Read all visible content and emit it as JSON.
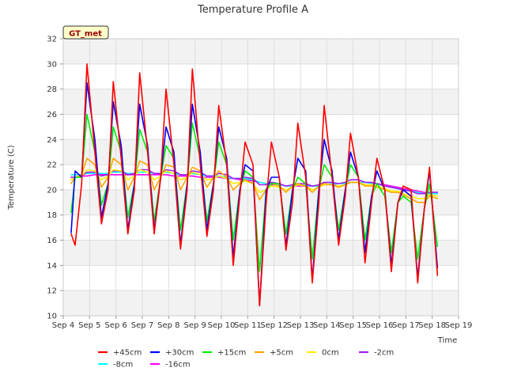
{
  "chart_data": {
    "type": "line",
    "title": "Temperature Profile A",
    "xlabel": "Time",
    "ylabel": "Temperature (C)",
    "badge": "GT_met",
    "xlim": [
      4,
      19
    ],
    "ylim": [
      10,
      32
    ],
    "x_ticks": [
      4,
      5,
      6,
      7,
      8,
      9,
      10,
      11,
      12,
      13,
      14,
      15,
      16,
      17,
      18,
      19
    ],
    "x_tick_labels": [
      "Sep 4",
      "Sep 5",
      "Sep 6",
      "Sep 7",
      "Sep 8",
      "Sep 9",
      "Sep 10",
      "Sep 11",
      "Sep 12",
      "Sep 13",
      "Sep 14",
      "Sep 15",
      "Sep 16",
      "Sep 17",
      "Sep 18",
      "Sep 19"
    ],
    "y_ticks": [
      10,
      12,
      14,
      16,
      18,
      20,
      22,
      24,
      26,
      28,
      30,
      32
    ],
    "grid": "horizontal bands",
    "legend_placement": "bottom",
    "x": [
      4.3,
      4.45,
      4.7,
      4.9,
      5.2,
      5.45,
      5.7,
      5.9,
      6.2,
      6.45,
      6.7,
      6.9,
      7.2,
      7.45,
      7.7,
      7.9,
      8.2,
      8.45,
      8.7,
      8.9,
      9.2,
      9.45,
      9.7,
      9.9,
      10.2,
      10.45,
      10.7,
      10.9,
      11.2,
      11.45,
      11.7,
      11.9,
      12.2,
      12.45,
      12.7,
      12.9,
      13.2,
      13.45,
      13.7,
      13.9,
      14.2,
      14.45,
      14.7,
      14.9,
      15.2,
      15.45,
      15.7,
      15.9,
      16.2,
      16.45,
      16.7,
      16.9,
      17.2,
      17.45,
      17.7,
      17.9,
      18.2
    ],
    "series": [
      {
        "name": "+45cm",
        "color": "#ff0000",
        "values": [
          16.5,
          15.6,
          20.5,
          30.0,
          23.0,
          17.3,
          20.0,
          28.6,
          22.5,
          16.5,
          20.0,
          29.3,
          23.0,
          16.5,
          21.0,
          28.0,
          22.0,
          15.3,
          20.0,
          29.6,
          22.0,
          16.3,
          20.0,
          26.7,
          22.0,
          14.0,
          19.5,
          23.8,
          22.0,
          10.8,
          19.0,
          23.8,
          21.0,
          15.2,
          19.0,
          25.3,
          21.0,
          12.6,
          19.0,
          26.7,
          21.0,
          15.6,
          19.5,
          24.5,
          21.0,
          14.2,
          19.0,
          22.5,
          20.0,
          13.5,
          19.0,
          20.3,
          20.0,
          12.6,
          18.5,
          21.8,
          13.2
        ]
      },
      {
        "name": "+30cm",
        "color": "#0000ff",
        "values": [
          16.6,
          21.5,
          21.0,
          28.5,
          24.0,
          17.8,
          20.5,
          27.0,
          23.5,
          16.8,
          20.5,
          26.8,
          23.5,
          16.8,
          21.0,
          25.0,
          23.0,
          15.6,
          20.5,
          26.8,
          23.0,
          16.8,
          20.5,
          25.0,
          22.5,
          14.6,
          20.0,
          22.0,
          21.5,
          10.8,
          20.0,
          21.0,
          21.0,
          15.5,
          20.0,
          22.5,
          21.5,
          12.8,
          20.0,
          24.0,
          21.5,
          16.0,
          20.0,
          23.0,
          21.0,
          15.0,
          19.5,
          21.5,
          20.0,
          14.0,
          19.0,
          20.0,
          19.5,
          13.0,
          18.5,
          21.5,
          13.8
        ]
      },
      {
        "name": "+15cm",
        "color": "#00ee00",
        "values": [
          18.2,
          21.0,
          21.0,
          26.0,
          23.0,
          18.8,
          20.5,
          25.0,
          23.0,
          17.8,
          20.5,
          24.8,
          23.0,
          17.5,
          21.0,
          23.5,
          22.5,
          16.8,
          20.5,
          25.3,
          22.5,
          17.5,
          20.5,
          23.8,
          22.0,
          16.0,
          20.0,
          21.5,
          21.0,
          13.5,
          20.0,
          20.5,
          20.5,
          16.5,
          20.0,
          21.0,
          20.5,
          14.5,
          20.0,
          22.0,
          21.0,
          16.8,
          20.0,
          22.0,
          21.0,
          16.0,
          19.5,
          20.5,
          19.5,
          15.0,
          19.0,
          19.5,
          19.0,
          14.5,
          18.5,
          20.5,
          15.5
        ]
      },
      {
        "name": "+5cm",
        "color": "#ffa500",
        "values": [
          20.5,
          21.0,
          21.2,
          22.5,
          22.0,
          20.2,
          21.0,
          22.5,
          22.0,
          20.0,
          21.0,
          22.3,
          22.0,
          20.0,
          21.0,
          22.0,
          21.8,
          20.0,
          21.0,
          21.8,
          21.5,
          20.2,
          21.0,
          21.5,
          21.0,
          20.0,
          20.5,
          20.8,
          20.5,
          19.2,
          20.0,
          20.5,
          20.3,
          19.8,
          20.3,
          20.5,
          20.3,
          19.8,
          20.3,
          20.5,
          20.4,
          20.2,
          20.4,
          20.6,
          20.6,
          20.3,
          20.3,
          20.2,
          20.0,
          19.8,
          19.8,
          19.6,
          19.3,
          19.0,
          19.0,
          19.5,
          19.3
        ]
      },
      {
        "name": "0cm",
        "color": "#ffee00",
        "values": [
          20.8,
          21.0,
          21.1,
          21.6,
          21.5,
          20.8,
          21.1,
          21.6,
          21.5,
          20.8,
          21.1,
          21.6,
          21.4,
          20.8,
          21.1,
          21.5,
          21.3,
          20.8,
          21.0,
          21.4,
          21.2,
          20.8,
          20.9,
          21.1,
          20.9,
          20.5,
          20.6,
          20.7,
          20.5,
          19.8,
          20.0,
          20.3,
          20.2,
          20.0,
          20.2,
          20.4,
          20.3,
          20.0,
          20.2,
          20.4,
          20.4,
          20.3,
          20.4,
          20.6,
          20.6,
          20.4,
          20.4,
          20.3,
          20.1,
          19.9,
          19.9,
          19.7,
          19.5,
          19.3,
          19.3,
          19.6,
          19.5
        ]
      },
      {
        "name": "-2cm",
        "color": "#a020f0",
        "values": [
          21.0,
          21.0,
          21.1,
          21.4,
          21.4,
          21.1,
          21.2,
          21.5,
          21.5,
          21.2,
          21.3,
          21.6,
          21.6,
          21.3,
          21.3,
          21.6,
          21.5,
          21.2,
          21.2,
          21.5,
          21.4,
          21.1,
          21.1,
          21.3,
          21.2,
          20.9,
          20.9,
          21.0,
          20.9,
          20.4,
          20.4,
          20.6,
          20.5,
          20.3,
          20.4,
          20.5,
          20.5,
          20.3,
          20.4,
          20.6,
          20.6,
          20.5,
          20.6,
          20.8,
          20.8,
          20.6,
          20.6,
          20.5,
          20.3,
          20.2,
          20.1,
          20.0,
          19.9,
          19.7,
          19.7,
          19.8,
          19.8
        ]
      },
      {
        "name": "-8cm",
        "color": "#00ffff",
        "values": [
          21.2,
          21.2,
          21.2,
          21.3,
          21.3,
          21.3,
          21.3,
          21.4,
          21.4,
          21.3,
          21.3,
          21.4,
          21.4,
          21.3,
          21.3,
          21.4,
          21.3,
          21.2,
          21.2,
          21.3,
          21.2,
          21.1,
          21.1,
          21.1,
          21.0,
          20.9,
          20.9,
          20.9,
          20.8,
          20.6,
          20.5,
          20.5,
          20.4,
          20.3,
          20.3,
          20.4,
          20.4,
          20.3,
          20.3,
          20.4,
          20.5,
          20.5,
          20.5,
          20.6,
          20.6,
          20.6,
          20.5,
          20.5,
          20.3,
          20.2,
          20.1,
          20.0,
          19.9,
          19.8,
          19.7,
          19.7,
          19.7
        ]
      },
      {
        "name": "-16cm",
        "color": "#ff00ff",
        "values": [
          21.0,
          21.0,
          21.1,
          21.1,
          21.2,
          21.2,
          21.2,
          21.2,
          21.2,
          21.2,
          21.2,
          21.2,
          21.2,
          21.2,
          21.2,
          21.2,
          21.1,
          21.1,
          21.1,
          21.1,
          21.0,
          21.0,
          21.0,
          21.0,
          20.9,
          20.9,
          20.8,
          20.8,
          20.7,
          20.6,
          20.5,
          20.4,
          20.4,
          20.3,
          20.3,
          20.3,
          20.3,
          20.3,
          20.3,
          20.4,
          20.4,
          20.5,
          20.5,
          20.6,
          20.6,
          20.6,
          20.5,
          20.5,
          20.4,
          20.3,
          20.2,
          20.1,
          20.0,
          19.9,
          19.8,
          19.7,
          19.7
        ]
      }
    ]
  }
}
